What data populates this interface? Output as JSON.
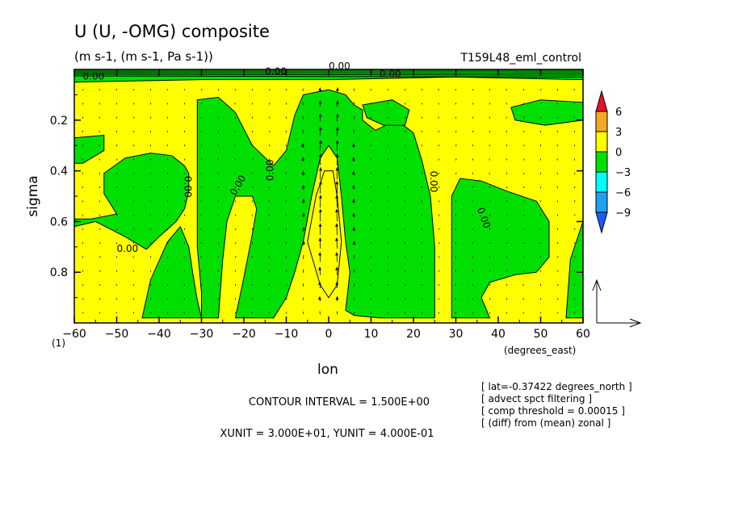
{
  "chart_data": {
    "type": "heatmap",
    "title": "U (U, -OMG) composite",
    "subtitle": "(m s-1, (m s-1, Pa s-1))",
    "run_name": "T159L48_eml_control",
    "xlabel": "lon",
    "x_units": "(degrees_east)",
    "ylabel": "sigma",
    "y_note": "(1)",
    "xlim": [
      -60,
      60
    ],
    "ylim": [
      0.0,
      1.0
    ],
    "y_inverted": true,
    "x_ticks": [
      -60,
      -50,
      -40,
      -30,
      -20,
      -10,
      0,
      10,
      20,
      30,
      40,
      50,
      60
    ],
    "y_ticks": [
      0.2,
      0.4,
      0.6,
      0.8
    ],
    "contour_label": "0.00",
    "colorbar": {
      "labels": [
        "6",
        "3",
        "0",
        "-3",
        "-6",
        "-9"
      ],
      "colors": [
        "#e8102a",
        "#f5a623",
        "#ffff00",
        "#00e000",
        "#00ffff",
        "#1fa0f0",
        "#1e5bff"
      ]
    },
    "regions_negative": [
      {
        "name": "west-upper",
        "points": [
          [
            -60,
            0.27
          ],
          [
            -53,
            0.26
          ],
          [
            -53,
            0.32
          ],
          [
            -58,
            0.37
          ],
          [
            -60,
            0.37
          ]
        ]
      },
      {
        "name": "west-lower",
        "points": [
          [
            -60,
            0.98
          ],
          [
            -60,
            0.62
          ],
          [
            -55,
            0.6
          ],
          [
            -48,
            0.66
          ],
          [
            -43,
            0.71
          ],
          [
            -40,
            0.66
          ],
          [
            -36,
            0.6
          ],
          [
            -34,
            0.55
          ],
          [
            -33,
            0.48
          ],
          [
            -33,
            0.41
          ],
          [
            -34,
            0.38
          ],
          [
            -37,
            0.34
          ],
          [
            -42,
            0.33
          ],
          [
            -48,
            0.35
          ],
          [
            -53,
            0.41
          ],
          [
            -53,
            0.49
          ],
          [
            -50,
            0.57
          ],
          [
            -56,
            0.59
          ],
          [
            -60,
            0.59
          ]
        ]
      },
      {
        "name": "west-mid",
        "points": [
          [
            -44,
            0.98
          ],
          [
            -42,
            0.83
          ],
          [
            -38,
            0.68
          ],
          [
            -35,
            0.62
          ],
          [
            -33,
            0.7
          ],
          [
            -32,
            0.81
          ],
          [
            -31,
            0.91
          ],
          [
            -30,
            0.98
          ]
        ]
      },
      {
        "name": "central",
        "points": [
          [
            -31,
            0.12
          ],
          [
            -26,
            0.11
          ],
          [
            -22,
            0.17
          ],
          [
            -18,
            0.3
          ],
          [
            -13,
            0.38
          ],
          [
            -10,
            0.32
          ],
          [
            -8,
            0.18
          ],
          [
            -6,
            0.1
          ],
          [
            0,
            0.08
          ],
          [
            4,
            0.1
          ],
          [
            6,
            0.14
          ],
          [
            8,
            0.16
          ],
          [
            8,
            0.2
          ],
          [
            11,
            0.24
          ],
          [
            16,
            0.2
          ],
          [
            20,
            0.25
          ],
          [
            22,
            0.36
          ],
          [
            24,
            0.5
          ],
          [
            25,
            0.7
          ],
          [
            25,
            0.98
          ],
          [
            12,
            0.98
          ],
          [
            6,
            0.97
          ],
          [
            4,
            0.95
          ],
          [
            5,
            0.8
          ],
          [
            4,
            0.68
          ],
          [
            3,
            0.5
          ],
          [
            2,
            0.35
          ],
          [
            0,
            0.3
          ],
          [
            -2,
            0.35
          ],
          [
            -4,
            0.5
          ],
          [
            -6,
            0.68
          ],
          [
            -8,
            0.8
          ],
          [
            -10,
            0.9
          ],
          [
            -13,
            0.98
          ],
          [
            -22,
            0.98
          ],
          [
            -20,
            0.82
          ],
          [
            -18,
            0.65
          ],
          [
            -17,
            0.55
          ],
          [
            -18,
            0.5
          ],
          [
            -22,
            0.5
          ],
          [
            -24,
            0.6
          ],
          [
            -25,
            0.75
          ],
          [
            -26,
            0.98
          ],
          [
            -30,
            0.98
          ],
          [
            -30,
            0.88
          ],
          [
            -31,
            0.7
          ],
          [
            -31,
            0.5
          ],
          [
            -31,
            0.3
          ],
          [
            -31,
            0.2
          ]
        ]
      },
      {
        "name": "central-core",
        "points": [
          [
            -5,
            0.68
          ],
          [
            -3,
            0.5
          ],
          [
            -1,
            0.4
          ],
          [
            1,
            0.4
          ],
          [
            2,
            0.5
          ],
          [
            3,
            0.68
          ],
          [
            2,
            0.85
          ],
          [
            0,
            0.9
          ],
          [
            -2,
            0.85
          ]
        ]
      },
      {
        "name": "east-upper-blob",
        "points": [
          [
            8,
            0.14
          ],
          [
            15,
            0.12
          ],
          [
            19,
            0.16
          ],
          [
            18,
            0.22
          ],
          [
            13,
            0.22
          ],
          [
            9,
            0.19
          ]
        ]
      },
      {
        "name": "east-upper-right",
        "points": [
          [
            43,
            0.15
          ],
          [
            50,
            0.12
          ],
          [
            60,
            0.13
          ],
          [
            60,
            0.2
          ],
          [
            51,
            0.22
          ],
          [
            44,
            0.2
          ]
        ]
      },
      {
        "name": "east-lower",
        "points": [
          [
            29,
            0.98
          ],
          [
            29,
            0.5
          ],
          [
            31,
            0.43
          ],
          [
            36,
            0.44
          ],
          [
            42,
            0.48
          ],
          [
            49,
            0.52
          ],
          [
            52,
            0.6
          ],
          [
            52,
            0.74
          ],
          [
            49,
            0.8
          ],
          [
            44,
            0.81
          ],
          [
            38,
            0.84
          ],
          [
            36,
            0.9
          ],
          [
            38,
            0.98
          ]
        ]
      },
      {
        "name": "east-edge",
        "points": [
          [
            56,
            0.98
          ],
          [
            57,
            0.75
          ],
          [
            60,
            0.6
          ],
          [
            60,
            0.98
          ]
        ]
      },
      {
        "name": "top-band",
        "points": [
          [
            -60,
            0.0
          ],
          [
            60,
            0.0
          ],
          [
            60,
            0.04
          ],
          [
            30,
            0.03
          ],
          [
            0,
            0.04
          ],
          [
            -30,
            0.04
          ],
          [
            -60,
            0.05
          ]
        ]
      }
    ],
    "annotations": [
      "CONTOUR INTERVAL = 1.500E+00",
      "XUNIT = 3.000E+01, YUNIT = 4.000E-01"
    ],
    "notes": [
      "[ lat=-0.37422 degrees_north ]",
      "[ advect spct filtering ]",
      "[ comp threshold = 0.00015 ]",
      "[ (diff) from (mean) zonal ]"
    ],
    "colors": {
      "positive": "#ffff00",
      "negative": "#00e000",
      "line": "#000000"
    }
  }
}
